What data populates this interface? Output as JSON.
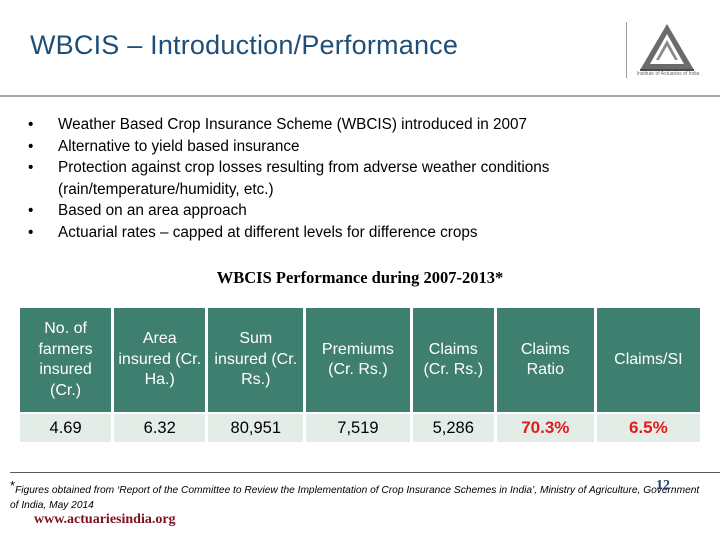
{
  "header": {
    "title": "WBCIS – Introduction/Performance",
    "logo_caption": "Institute of Actuaries of India"
  },
  "bullets": [
    "Weather Based Crop Insurance Scheme (WBCIS) introduced in 2007",
    "Alternative to yield based insurance",
    "Protection against crop losses resulting from adverse weather conditions (rain/temperature/humidity, etc.)",
    "Based on an area approach",
    "Actuarial rates – capped at different levels for difference crops"
  ],
  "bullet_glyph": "•",
  "table": {
    "title": "WBCIS Performance during 2007-2013*",
    "headers": [
      "No. of farmers insured (Cr.)",
      "Area insured (Cr. Ha.)",
      "Sum insured (Cr. Rs.)",
      "Premiums (Cr. Rs.)",
      "Claims (Cr. Rs.)",
      "Claims Ratio",
      "Claims/SI"
    ],
    "row": [
      "4.69",
      "6.32",
      "80,951",
      "7,519",
      "5,286",
      "70.3%",
      "6.5%"
    ],
    "header_color": "#3f7f70",
    "cell_color": "#e4ece8",
    "highlight_color": "#e31b1b"
  },
  "footer": {
    "star": "*",
    "footnote": "Figures obtained from ‘Report of the Committee to Review the Implementation of Crop Insurance Schemes in India’, Ministry of Agriculture, Government of India, May 2014",
    "url": "www.actuariesindia.org",
    "page_number": "12"
  },
  "colors": {
    "title": "#1f4e79",
    "url": "#7a1020",
    "page_number": "#1f3a6b"
  }
}
